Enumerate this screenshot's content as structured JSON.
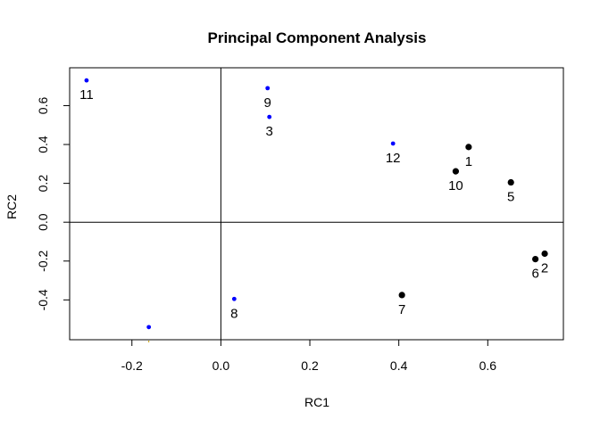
{
  "chart_data": {
    "type": "scatter",
    "title": "Principal Component Analysis",
    "xlabel": "RC1",
    "ylabel": "RC2",
    "xlim": [
      -0.34,
      0.77
    ],
    "ylim": [
      -0.605,
      0.795
    ],
    "xticks": [
      -0.2,
      0.0,
      0.2,
      0.4,
      0.6
    ],
    "xtick_labels": [
      "-0.2",
      "0.0",
      "0.2",
      "0.4",
      "0.6"
    ],
    "yticks": [
      -0.4,
      -0.2,
      0.0,
      0.2,
      0.4,
      0.6
    ],
    "ytick_labels": [
      "-0.4",
      "-0.2",
      "0.0",
      "0.2",
      "0.4",
      "0.6"
    ],
    "reference_lines": {
      "x": 0,
      "y": 0
    },
    "grid": false,
    "colors": {
      "group_black": "#000000",
      "group_blue": "#0000ff",
      "partial_point": "#c8a000"
    },
    "points": [
      {
        "label": "1",
        "x": 0.557,
        "y": 0.387,
        "color": "#000000",
        "size": "large"
      },
      {
        "label": "2",
        "x": 0.728,
        "y": -0.162,
        "color": "#000000",
        "size": "large"
      },
      {
        "label": "3",
        "x": 0.109,
        "y": 0.542,
        "color": "#0000ff",
        "size": "small"
      },
      {
        "label": "5",
        "x": 0.652,
        "y": 0.205,
        "color": "#000000",
        "size": "large"
      },
      {
        "label": "6",
        "x": 0.707,
        "y": -0.19,
        "color": "#000000",
        "size": "large"
      },
      {
        "label": "7",
        "x": 0.407,
        "y": -0.375,
        "color": "#000000",
        "size": "large"
      },
      {
        "label": "8",
        "x": 0.03,
        "y": -0.395,
        "color": "#0000ff",
        "size": "small"
      },
      {
        "label": "9",
        "x": 0.105,
        "y": 0.69,
        "color": "#0000ff",
        "size": "small"
      },
      {
        "label": "10",
        "x": 0.528,
        "y": 0.262,
        "color": "#000000",
        "size": "large"
      },
      {
        "label": "11",
        "x": -0.302,
        "y": 0.73,
        "color": "#0000ff",
        "size": "small"
      },
      {
        "label": "12",
        "x": 0.387,
        "y": 0.405,
        "color": "#0000ff",
        "size": "small"
      },
      {
        "label": "",
        "x": -0.162,
        "y": -0.54,
        "color": "#0000ff",
        "size": "small"
      }
    ]
  }
}
